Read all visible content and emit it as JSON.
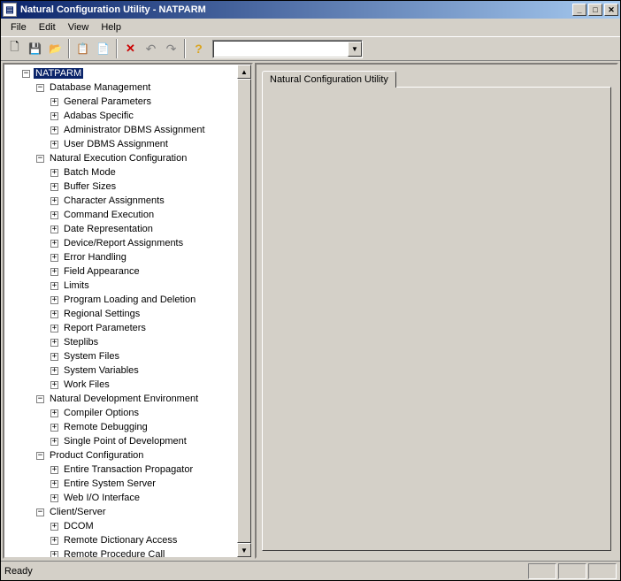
{
  "title": "Natural Configuration Utility - NATPARM",
  "menus": [
    "File",
    "Edit",
    "View",
    "Help"
  ],
  "toolbar": {
    "combo_value": "",
    "combo_placeholder": ""
  },
  "tree": [
    {
      "depth": 0,
      "exp": "-",
      "label": "NATPARM",
      "selected": true
    },
    {
      "depth": 1,
      "exp": "-",
      "label": "Database Management"
    },
    {
      "depth": 2,
      "exp": "+",
      "label": "General Parameters"
    },
    {
      "depth": 2,
      "exp": "+",
      "label": "Adabas Specific"
    },
    {
      "depth": 2,
      "exp": "+",
      "label": "Administrator DBMS Assignment"
    },
    {
      "depth": 2,
      "exp": "+",
      "label": "User DBMS Assignment"
    },
    {
      "depth": 1,
      "exp": "-",
      "label": "Natural Execution Configuration"
    },
    {
      "depth": 2,
      "exp": "+",
      "label": "Batch Mode"
    },
    {
      "depth": 2,
      "exp": "+",
      "label": "Buffer Sizes"
    },
    {
      "depth": 2,
      "exp": "+",
      "label": "Character Assignments"
    },
    {
      "depth": 2,
      "exp": "+",
      "label": "Command Execution"
    },
    {
      "depth": 2,
      "exp": "+",
      "label": "Date Representation"
    },
    {
      "depth": 2,
      "exp": "+",
      "label": "Device/Report Assignments"
    },
    {
      "depth": 2,
      "exp": "+",
      "label": "Error Handling"
    },
    {
      "depth": 2,
      "exp": "+",
      "label": "Field Appearance"
    },
    {
      "depth": 2,
      "exp": "+",
      "label": "Limits"
    },
    {
      "depth": 2,
      "exp": "+",
      "label": "Program Loading and Deletion"
    },
    {
      "depth": 2,
      "exp": "+",
      "label": "Regional Settings"
    },
    {
      "depth": 2,
      "exp": "+",
      "label": "Report Parameters"
    },
    {
      "depth": 2,
      "exp": "+",
      "label": "Steplibs"
    },
    {
      "depth": 2,
      "exp": "+",
      "label": "System Files"
    },
    {
      "depth": 2,
      "exp": "+",
      "label": "System Variables"
    },
    {
      "depth": 2,
      "exp": "+",
      "label": "Work Files"
    },
    {
      "depth": 1,
      "exp": "-",
      "label": "Natural Development Environment"
    },
    {
      "depth": 2,
      "exp": "+",
      "label": "Compiler Options"
    },
    {
      "depth": 2,
      "exp": "+",
      "label": "Remote Debugging"
    },
    {
      "depth": 2,
      "exp": "+",
      "label": "Single Point of Development"
    },
    {
      "depth": 1,
      "exp": "-",
      "label": "Product Configuration"
    },
    {
      "depth": 2,
      "exp": "+",
      "label": "Entire Transaction Propagator"
    },
    {
      "depth": 2,
      "exp": "+",
      "label": "Entire System Server"
    },
    {
      "depth": 2,
      "exp": "+",
      "label": "Web I/O Interface"
    },
    {
      "depth": 1,
      "exp": "-",
      "label": "Client/Server"
    },
    {
      "depth": 2,
      "exp": "+",
      "label": "DCOM"
    },
    {
      "depth": 2,
      "exp": "+",
      "label": "Remote Dictionary Access"
    },
    {
      "depth": 2,
      "exp": "+",
      "label": "Remote Procedure Call"
    }
  ],
  "tab_label": "Natural Configuration Utility",
  "status_text": "Ready",
  "indent_base": 18,
  "indent_step": 16
}
